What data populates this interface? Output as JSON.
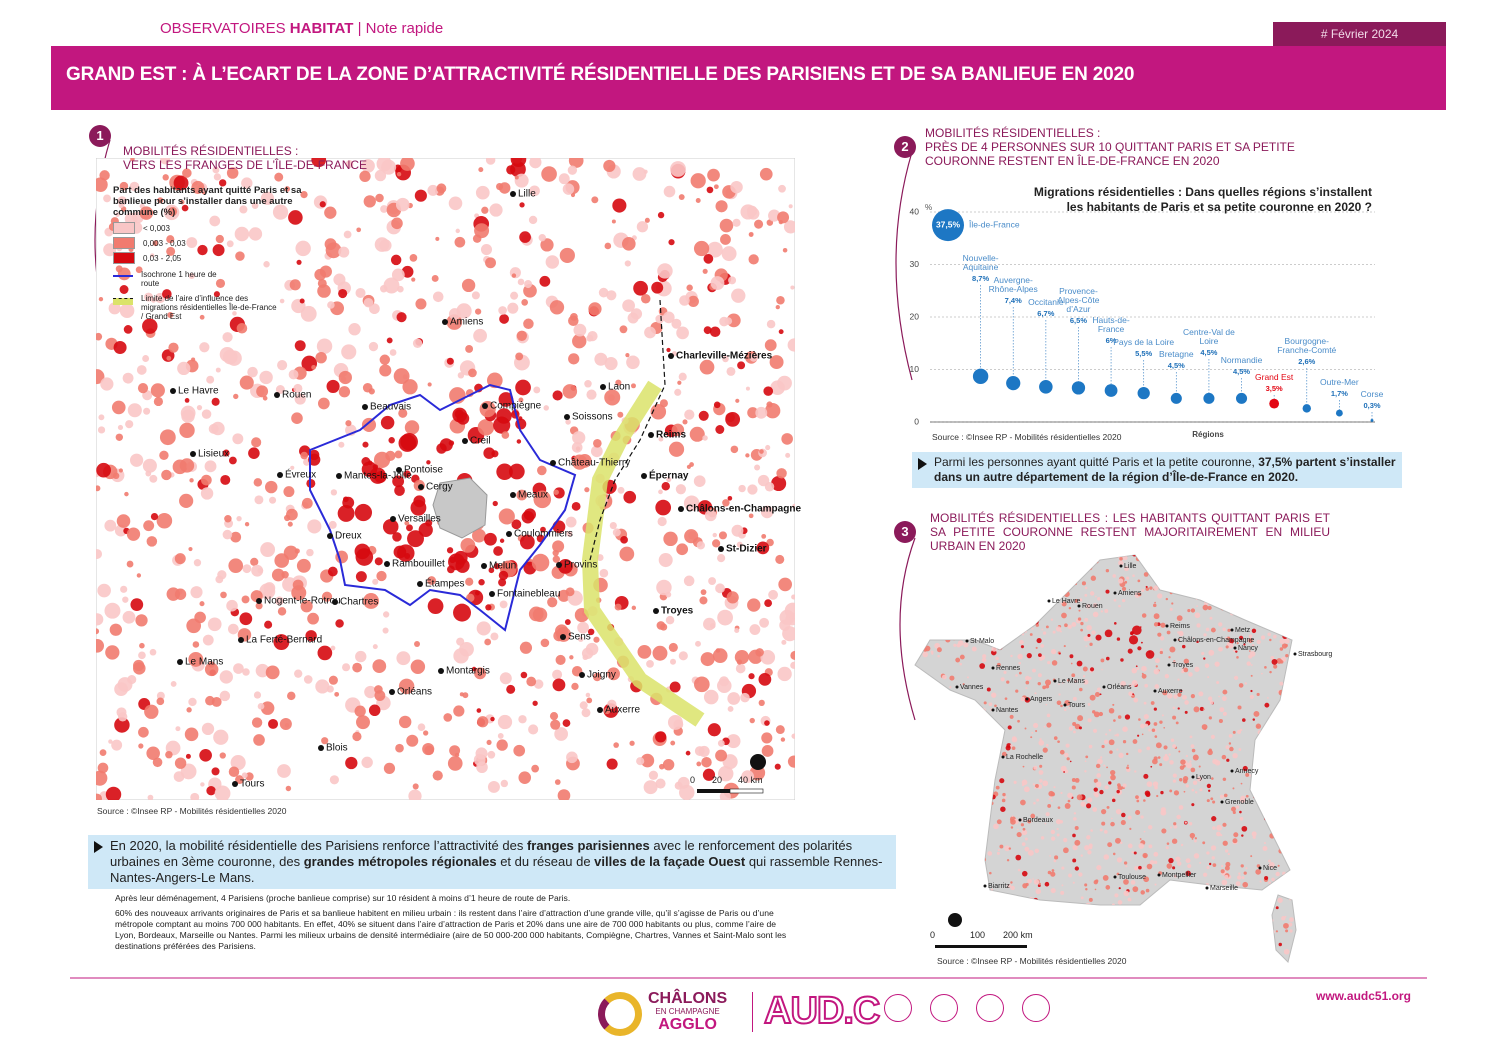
{
  "header": {
    "brand_regular": "OBSERVATOIRES",
    "brand_bold": "HABITAT",
    "brand_sep": "|",
    "brand_note": "Note rapide",
    "date": "# Février 2024",
    "title": "GRAND EST : À L’ECART DE LA ZONE D’ATTRACTIVITÉ RÉSIDENTIELLE DES PARISIENS ET DE SA BANLIEUE EN 2020"
  },
  "section1": {
    "number": "1",
    "title_line1": "MOBILITÉS RÉSIDENTIELLES :",
    "title_line2": "VERS LES FRANGES DE L’ÎLE-DE-FRANCE",
    "legend": {
      "title": "Part des habitants ayant quitté Paris et sa banlieue pour s’installer dans une autre commune (%)",
      "classes": [
        "< 0,003",
        "0,003 - 0,03",
        "0,03 - 2,05"
      ],
      "class_colors": [
        "#f9c6c6",
        "#f17b6f",
        "#d6090f"
      ],
      "isochrone": "Isochrone 1 heure de route",
      "limit": "Limite de l’aire d’influence des migrations résidentielles Île-de-France / Grand Est"
    },
    "map_labels": [
      "Lille",
      "Amiens",
      "Charleville-Mézières",
      "Laon",
      "Le Havre",
      "Rouen",
      "Beauvais",
      "Compiègne",
      "Soissons",
      "Reims",
      "Lisieux",
      "Creil",
      "Château-Thierry",
      "Épernay",
      "Évreux",
      "Mantes-la-Jolie",
      "Pontoise",
      "Cergy",
      "Meaux",
      "Châlons-en-Champagne",
      "Versailles",
      "Dreux",
      "Coulommiers",
      "St-Dizier",
      "Rambouillet",
      "Melun",
      "Provins",
      "Étampes",
      "Fontainebleau",
      "Nogent-le-Rotrou",
      "Chartres",
      "Troyes",
      "Sens",
      "La Ferté-Bernard",
      "Le Mans",
      "Montargis",
      "Joigny",
      "Orléans",
      "Auxerre",
      "Blois",
      "Tours"
    ],
    "scale": [
      "0",
      "20",
      "40 km"
    ],
    "source": "Source : ©Insee RP - Mobilités résidentielles 2020",
    "callout": [
      {
        "text": "En 2020, la mobilité résidentielle des Parisiens renforce l’attractivité des ",
        "bold": false
      },
      {
        "text": "franges parisiennes",
        "bold": true
      },
      {
        "text": " avec le renforcement des polarités urbaines en 3ème couronne, des ",
        "bold": false
      },
      {
        "text": "grandes métropoles régionales",
        "bold": true
      },
      {
        "text": " et du réseau de ",
        "bold": false
      },
      {
        "text": "villes de la façade Ouest",
        "bold": true
      },
      {
        "text": " qui rassemble Rennes-Nantes-Angers-Le Mans.",
        "bold": false
      }
    ],
    "notes": [
      "Après leur déménagement, 4 Parisiens (proche banlieue comprise) sur 10 résident à moins d’1 heure de route de Paris.",
      "60% des nouveaux arrivants originaires de Paris et sa banlieue habitent en milieu urbain : ils restent dans l’aire d’attraction d’une grande ville, qu’il s’agisse de Paris ou d’une métropole comptant au moins 700 000 habitants. En effet, 40% se situent dans l’aire d’attraction de Paris et 20% dans une aire de 700 000 habitants ou plus, comme l’aire de Lyon, Bordeaux, Marseille ou Nantes. Parmi les milieux urbains de densité intermédiaire (aire de 50 000-200 000 habitants, Compiègne, Chartres, Vannes et Saint-Malo sont les destinations préférées des Parisiens."
    ]
  },
  "section2": {
    "number": "2",
    "title": [
      "MOBILITÉS RÉSIDENTIELLES :",
      "PRÈS DE 4 PERSONNES SUR 10 QUITTANT PARIS ET SA PETITE",
      "COURONNE RESTENT EN ÎLE-DE-FRANCE EN 2020"
    ],
    "chart_data": {
      "type": "bubble",
      "title": "Migrations résidentielles : Dans quelles régions s’installent les habitants de Paris et sa petite couronne en 2020 ?",
      "y_unit": "%",
      "x_label": "Régions",
      "categories": [
        "Île-de-France",
        "Nouvelle-Aquitaine",
        "Auvergne-Rhône-Alpes",
        "Occitanie",
        "Provence-Alpes-Côte d’Azur",
        "Hauts-de-France",
        "Pays de la Loire",
        "Bretagne",
        "Centre-Val de Loire",
        "Normandie",
        "Grand Est",
        "Bourgogne-Franche-Comté",
        "Outre-Mer",
        "Corse"
      ],
      "values": [
        37.5,
        8.7,
        7.4,
        6.7,
        6.5,
        6,
        5.5,
        4.5,
        4.5,
        4.5,
        3.5,
        2.6,
        1.7,
        0.3
      ],
      "value_labels": [
        "37,5%",
        "8,7%",
        "7,4%",
        "6,7%",
        "6,5%",
        "6%",
        "5,5%",
        "4,5%",
        "4,5%",
        "4,5%",
        "3,5%",
        "2,6%",
        "1,7%",
        "0,3%"
      ],
      "point_colors": [
        "#1d77c4",
        "#1d77c4",
        "#1d77c4",
        "#1d77c4",
        "#1d77c4",
        "#1d77c4",
        "#1d77c4",
        "#1d77c4",
        "#1d77c4",
        "#1d77c4",
        "#e30613",
        "#1d77c4",
        "#1d77c4",
        "#1d77c4"
      ],
      "ylim": [
        0,
        40
      ],
      "yticks": [
        0,
        10,
        20,
        30,
        40
      ],
      "grid": true,
      "source": "Source : ©Insee RP - Mobilités résidentielles 2020"
    },
    "callout": [
      {
        "text": "Parmi les personnes ayant quitté Paris et la petite couronne, ",
        "bold": false
      },
      {
        "text": "37,5%",
        "bold": true
      },
      {
        "text": " partent s’installer dans un autre département de la région d’Île-de-France en 2020.",
        "bold": true
      }
    ]
  },
  "section3": {
    "number": "3",
    "title": "MOBILITÉS RÉSIDENTIELLES : LES HABITANTS QUITTANT PARIS ET SA PETITE COURONNE RESTENT MAJORITAIREMENT EN MILIEU URBAIN EN 2020",
    "map_labels": [
      "Lille",
      "Le Havre",
      "Amiens",
      "Rouen",
      "Reims",
      "Metz",
      "St-Malo",
      "Châlons-en-Champagne",
      "Nancy",
      "Strasbourg",
      "Rennes",
      "Troyes",
      "Le Mans",
      "Orléans",
      "Vannes",
      "Angers",
      "Auxerre",
      "Tours",
      "Nantes",
      "La Rochelle",
      "Lyon",
      "Annecy",
      "Grenoble",
      "Bordeaux",
      "Toulouse",
      "Montpellier",
      "Nice",
      "Marseille",
      "Biarritz"
    ],
    "scale": [
      "0",
      "100",
      "200 km"
    ],
    "source": "Source : ©Insee RP - Mobilités résidentielles 2020"
  },
  "footer": {
    "logo1_line1": "CHÂLONS",
    "logo1_line2": "EN CHAMPAGNE",
    "logo1_line3": "AGGLO",
    "logo2": "AUD.C",
    "url": "www.audc51.org"
  }
}
